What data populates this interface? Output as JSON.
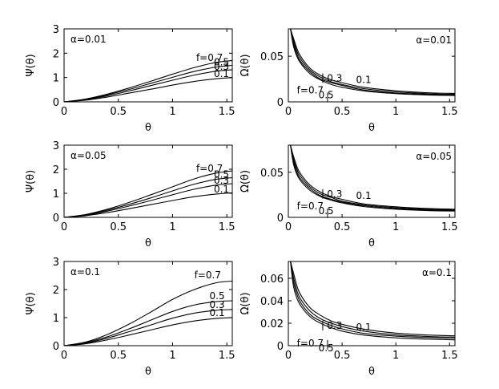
{
  "chart_data": [
    {
      "type": "line",
      "title": "α=0.01",
      "xlabel": "θ",
      "ylabel": "Ψ(θ)",
      "xlim": [
        0,
        1.55
      ],
      "ylim": [
        0,
        3
      ],
      "xticks": [
        "0",
        "0.5",
        "1",
        "1.5"
      ],
      "yticks": [
        "0",
        "1",
        "2",
        "3"
      ],
      "series": [
        {
          "name": "f=0.7",
          "label": "f=0.7",
          "x": [
            0,
            0.2,
            0.4,
            0.6,
            0.8,
            1.0,
            1.2,
            1.4,
            1.55
          ],
          "y": [
            0,
            0.12,
            0.32,
            0.57,
            0.85,
            1.14,
            1.41,
            1.62,
            1.7
          ]
        },
        {
          "name": "0.5",
          "label": "0.5",
          "x": [
            0,
            0.2,
            0.4,
            0.6,
            0.8,
            1.0,
            1.2,
            1.4,
            1.55
          ],
          "y": [
            0,
            0.1,
            0.29,
            0.51,
            0.76,
            1.01,
            1.25,
            1.43,
            1.5
          ]
        },
        {
          "name": "0.3",
          "label": "0.3",
          "x": [
            0,
            0.2,
            0.4,
            0.6,
            0.8,
            1.0,
            1.2,
            1.4,
            1.55
          ],
          "y": [
            0,
            0.09,
            0.25,
            0.45,
            0.67,
            0.89,
            1.1,
            1.26,
            1.32
          ]
        },
        {
          "name": "0.1",
          "label": "0.1",
          "x": [
            0,
            0.2,
            0.4,
            0.6,
            0.8,
            1.0,
            1.2,
            1.4,
            1.55
          ],
          "y": [
            0,
            0.07,
            0.2,
            0.36,
            0.52,
            0.69,
            0.84,
            0.95,
            1.0
          ]
        }
      ]
    },
    {
      "type": "line",
      "title": "α=0.01",
      "xlabel": "θ",
      "ylabel": "Ω(θ)",
      "xlim": [
        0,
        1.55
      ],
      "ylim": [
        0,
        0.08
      ],
      "xticks": [
        "0",
        "0.5",
        "1",
        "1.5"
      ],
      "yticks": [
        "0",
        "0.05"
      ],
      "series": [
        {
          "name": "f=0.7",
          "label": "f=0.7",
          "x": [
            0.02,
            0.05,
            0.1,
            0.2,
            0.3,
            0.4,
            0.5,
            0.7,
            1.0,
            1.3,
            1.55
          ],
          "y": [
            0.08,
            0.06,
            0.045,
            0.031,
            0.024,
            0.019,
            0.016,
            0.012,
            0.009,
            0.0075,
            0.007
          ]
        },
        {
          "name": "0.5",
          "label": "0.5",
          "x": [
            0.02,
            0.05,
            0.1,
            0.2,
            0.3,
            0.4,
            0.5,
            0.7,
            1.0,
            1.3,
            1.55
          ],
          "y": [
            0.08,
            0.063,
            0.047,
            0.033,
            0.025,
            0.021,
            0.018,
            0.013,
            0.0097,
            0.0082,
            0.0075
          ]
        },
        {
          "name": "0.3",
          "label": "0.3",
          "x": [
            0.02,
            0.05,
            0.1,
            0.2,
            0.3,
            0.4,
            0.5,
            0.7,
            1.0,
            1.3,
            1.55
          ],
          "y": [
            0.08,
            0.066,
            0.05,
            0.035,
            0.027,
            0.022,
            0.019,
            0.0145,
            0.011,
            0.009,
            0.0083
          ]
        },
        {
          "name": "0.1",
          "label": "0.1",
          "x": [
            0.02,
            0.05,
            0.1,
            0.2,
            0.3,
            0.4,
            0.5,
            0.7,
            1.0,
            1.3,
            1.55
          ],
          "y": [
            0.08,
            0.069,
            0.053,
            0.037,
            0.029,
            0.024,
            0.021,
            0.016,
            0.0122,
            0.01,
            0.0093
          ]
        }
      ]
    },
    {
      "type": "line",
      "title": "α=0.05",
      "xlabel": "θ",
      "ylabel": "Ψ(θ)",
      "xlim": [
        0,
        1.55
      ],
      "ylim": [
        0,
        3
      ],
      "xticks": [
        "0",
        "0.5",
        "1",
        "1.5"
      ],
      "yticks": [
        "0",
        "1",
        "2",
        "3"
      ],
      "series": [
        {
          "name": "f=0.7",
          "label": "f=0.7",
          "x": [
            0,
            0.2,
            0.4,
            0.6,
            0.8,
            1.0,
            1.2,
            1.4,
            1.55
          ],
          "y": [
            0,
            0.12,
            0.34,
            0.62,
            0.94,
            1.27,
            1.6,
            1.84,
            1.93
          ]
        },
        {
          "name": "0.5",
          "label": "0.5",
          "x": [
            0,
            0.2,
            0.4,
            0.6,
            0.8,
            1.0,
            1.2,
            1.4,
            1.55
          ],
          "y": [
            0,
            0.1,
            0.3,
            0.54,
            0.81,
            1.1,
            1.38,
            1.58,
            1.65
          ]
        },
        {
          "name": "0.3",
          "label": "0.3",
          "x": [
            0,
            0.2,
            0.4,
            0.6,
            0.8,
            1.0,
            1.2,
            1.4,
            1.55
          ],
          "y": [
            0,
            0.09,
            0.26,
            0.47,
            0.7,
            0.94,
            1.17,
            1.34,
            1.4
          ]
        },
        {
          "name": "0.1",
          "label": "0.1",
          "x": [
            0,
            0.2,
            0.4,
            0.6,
            0.8,
            1.0,
            1.2,
            1.4,
            1.55
          ],
          "y": [
            0,
            0.07,
            0.2,
            0.36,
            0.53,
            0.7,
            0.86,
            0.97,
            1.02
          ]
        }
      ]
    },
    {
      "type": "line",
      "title": "α=0.05",
      "xlabel": "θ",
      "ylabel": "Ω(θ)",
      "xlim": [
        0,
        1.55
      ],
      "ylim": [
        0,
        0.08
      ],
      "xticks": [
        "0",
        "0.5",
        "1",
        "1.5"
      ],
      "yticks": [
        "0",
        "0.05"
      ],
      "series": [
        {
          "name": "f=0.7",
          "label": "f=0.7",
          "x": [
            0.02,
            0.05,
            0.1,
            0.2,
            0.3,
            0.4,
            0.5,
            0.7,
            1.0,
            1.3,
            1.55
          ],
          "y": [
            0.08,
            0.058,
            0.043,
            0.03,
            0.023,
            0.019,
            0.016,
            0.012,
            0.009,
            0.0075,
            0.007
          ]
        },
        {
          "name": "0.5",
          "label": "0.5",
          "x": [
            0.02,
            0.05,
            0.1,
            0.2,
            0.3,
            0.4,
            0.5,
            0.7,
            1.0,
            1.3,
            1.55
          ],
          "y": [
            0.08,
            0.061,
            0.045,
            0.032,
            0.024,
            0.02,
            0.017,
            0.013,
            0.0097,
            0.0082,
            0.0076
          ]
        },
        {
          "name": "0.3",
          "label": "0.3",
          "x": [
            0.02,
            0.05,
            0.1,
            0.2,
            0.3,
            0.4,
            0.5,
            0.7,
            1.0,
            1.3,
            1.55
          ],
          "y": [
            0.08,
            0.064,
            0.048,
            0.034,
            0.026,
            0.022,
            0.018,
            0.014,
            0.0107,
            0.009,
            0.0083
          ]
        },
        {
          "name": "0.1",
          "label": "0.1",
          "x": [
            0.02,
            0.05,
            0.1,
            0.2,
            0.3,
            0.4,
            0.5,
            0.7,
            1.0,
            1.3,
            1.55
          ],
          "y": [
            0.08,
            0.067,
            0.051,
            0.036,
            0.028,
            0.023,
            0.02,
            0.015,
            0.0117,
            0.0098,
            0.009
          ]
        }
      ]
    },
    {
      "type": "line",
      "title": "α=0.1",
      "xlabel": "θ",
      "ylabel": "Ψ(θ)",
      "xlim": [
        0,
        1.55
      ],
      "ylim": [
        0,
        3
      ],
      "xticks": [
        "0",
        "0.5",
        "1",
        "1.5"
      ],
      "yticks": [
        "0",
        "1",
        "2",
        "3"
      ],
      "series": [
        {
          "name": "f=0.7",
          "label": "f=0.7",
          "x": [
            0,
            0.2,
            0.4,
            0.6,
            0.8,
            1.0,
            1.2,
            1.4,
            1.55
          ],
          "y": [
            0,
            0.13,
            0.4,
            0.77,
            1.2,
            1.65,
            2.0,
            2.24,
            2.3
          ]
        },
        {
          "name": "0.5",
          "label": "0.5",
          "x": [
            0,
            0.2,
            0.4,
            0.6,
            0.8,
            1.0,
            1.2,
            1.4,
            1.55
          ],
          "y": [
            0,
            0.11,
            0.32,
            0.6,
            0.91,
            1.22,
            1.45,
            1.57,
            1.6
          ]
        },
        {
          "name": "0.3",
          "label": "0.3",
          "x": [
            0,
            0.2,
            0.4,
            0.6,
            0.8,
            1.0,
            1.2,
            1.4,
            1.55
          ],
          "y": [
            0,
            0.09,
            0.27,
            0.5,
            0.74,
            0.98,
            1.16,
            1.26,
            1.29
          ]
        },
        {
          "name": "0.1",
          "label": "0.1",
          "x": [
            0,
            0.2,
            0.4,
            0.6,
            0.8,
            1.0,
            1.2,
            1.4,
            1.55
          ],
          "y": [
            0,
            0.07,
            0.21,
            0.38,
            0.56,
            0.74,
            0.88,
            0.97,
            1.0
          ]
        }
      ]
    },
    {
      "type": "line",
      "title": "α=0.1",
      "xlabel": "θ",
      "ylabel": "Ω(θ)",
      "xlim": [
        0,
        1.55
      ],
      "ylim": [
        0,
        0.075
      ],
      "xticks": [
        "0",
        "0.5",
        "1",
        "1.5"
      ],
      "yticks": [
        "0",
        "0.02",
        "0.04",
        "0.06"
      ],
      "series": [
        {
          "name": "f=0.7",
          "label": "f=0.7",
          "x": [
            0.02,
            0.05,
            0.1,
            0.2,
            0.3,
            0.4,
            0.5,
            0.7,
            1.0,
            1.3,
            1.55
          ],
          "y": [
            0.075,
            0.052,
            0.038,
            0.026,
            0.02,
            0.016,
            0.013,
            0.0095,
            0.007,
            0.0058,
            0.0052
          ]
        },
        {
          "name": "0.5",
          "label": "0.5",
          "x": [
            0.02,
            0.05,
            0.1,
            0.2,
            0.3,
            0.4,
            0.5,
            0.7,
            1.0,
            1.3,
            1.55
          ],
          "y": [
            0.075,
            0.056,
            0.041,
            0.028,
            0.022,
            0.018,
            0.015,
            0.011,
            0.0085,
            0.0072,
            0.0066
          ]
        },
        {
          "name": "0.3",
          "label": "0.3",
          "x": [
            0.02,
            0.05,
            0.1,
            0.2,
            0.3,
            0.4,
            0.5,
            0.7,
            1.0,
            1.3,
            1.55
          ],
          "y": [
            0.075,
            0.06,
            0.044,
            0.031,
            0.024,
            0.02,
            0.017,
            0.013,
            0.0097,
            0.0082,
            0.0076
          ]
        },
        {
          "name": "0.1",
          "label": "0.1",
          "x": [
            0.02,
            0.05,
            0.1,
            0.2,
            0.3,
            0.4,
            0.5,
            0.7,
            1.0,
            1.3,
            1.55
          ],
          "y": [
            0.075,
            0.064,
            0.048,
            0.034,
            0.027,
            0.022,
            0.019,
            0.0148,
            0.0112,
            0.0095,
            0.0088
          ]
        }
      ]
    }
  ]
}
